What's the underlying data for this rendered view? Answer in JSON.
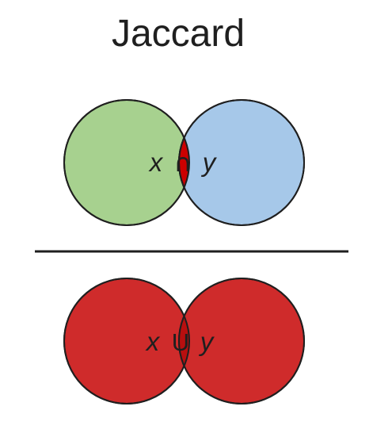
{
  "diagram": {
    "title": "Jaccard",
    "intersection_label": {
      "var_x": "x",
      "operator": "∩",
      "var_y": "y"
    },
    "union_label": {
      "var_x": "x",
      "operator": "U",
      "var_y": "y"
    }
  },
  "colors": {
    "circle_x_top": "#a7d18f",
    "circle_y_top": "#a6c8e9",
    "highlight_red": "#cc0000",
    "union_red": "#cf2b2b",
    "stroke": "#1f1f1f",
    "divider": "#1f1f1f",
    "text": "#1f1f1f"
  }
}
